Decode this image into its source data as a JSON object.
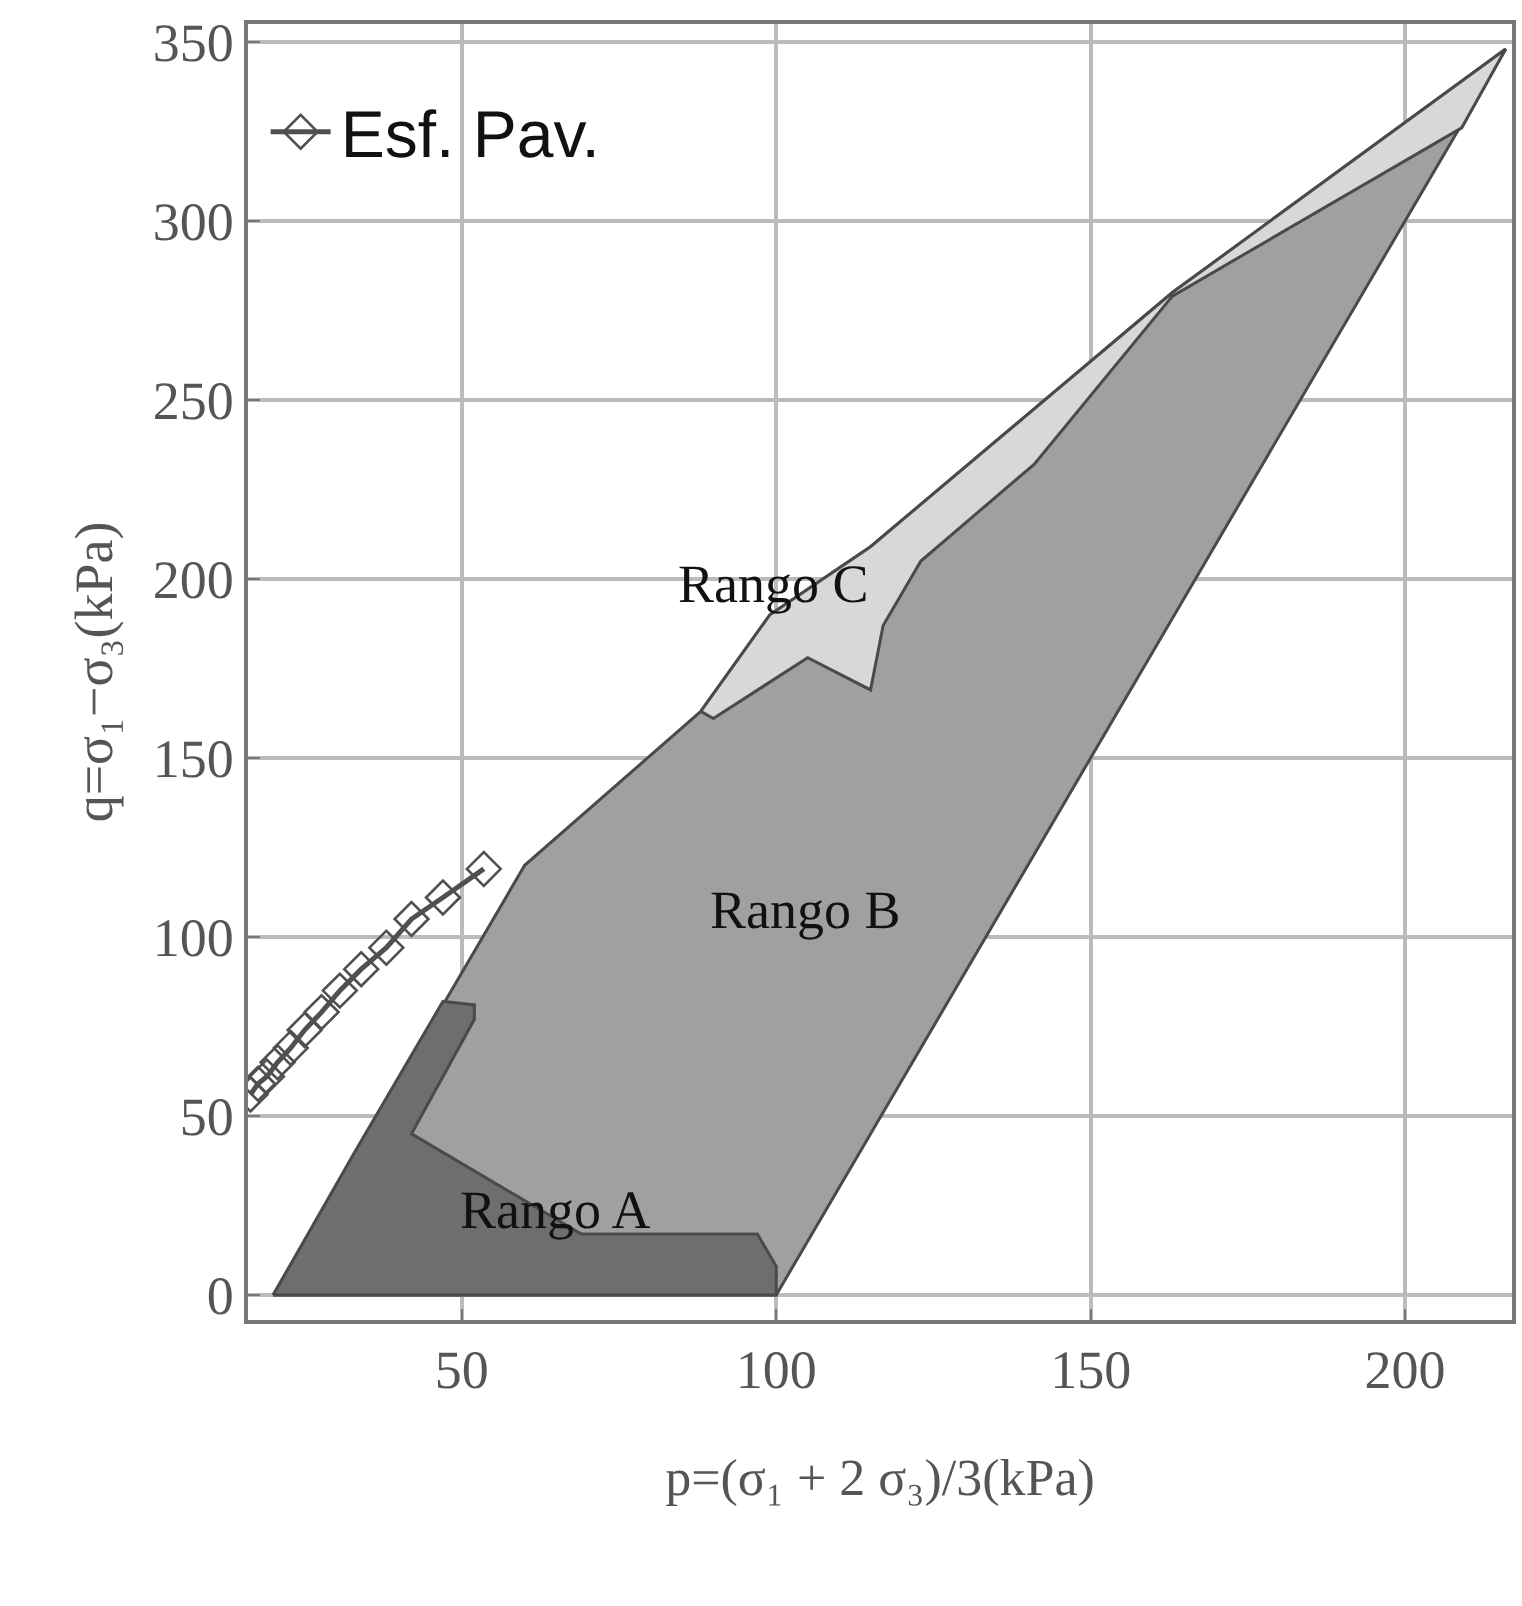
{
  "chart_data": {
    "type": "area",
    "xlabel": "p=(σ₁ + 2 σ₃)/3(kPa)",
    "ylabel": "q=σ₁−σ₃(kPa)",
    "xlim": [
      16,
      217
    ],
    "ylim": [
      -7,
      355
    ],
    "xticks": [
      50,
      100,
      150,
      200
    ],
    "yticks": [
      0,
      50,
      100,
      150,
      200,
      250,
      300,
      350
    ],
    "grid": true,
    "legend": "top left",
    "series": [
      {
        "color": "#a0a0a0",
        "x": [
          20,
          100,
          216,
          163,
          115,
          99,
          88,
          60,
          20
        ],
        "values": [
          0,
          0,
          348,
          280,
          209,
          190,
          163,
          120,
          0
        ]
      },
      {
        "color": "#6e6e6e",
        "x": [
          20,
          100,
          100,
          97,
          69,
          42,
          52,
          52,
          47,
          33,
          20
        ],
        "values": [
          0,
          0,
          8,
          17,
          17,
          45,
          77,
          81,
          82,
          40,
          0
        ]
      },
      {
        "color": "#d8d8d8",
        "x": [
          88,
          99,
          115,
          163,
          216,
          209,
          163,
          141,
          123,
          117,
          115,
          105,
          90,
          88
        ],
        "values": [
          163,
          190,
          209,
          280,
          348,
          326,
          279,
          232,
          205,
          187,
          169,
          178,
          161,
          163
        ]
      },
      {
        "type": "line",
        "name": "Esf. Pav.",
        "color": "#505050",
        "marker": "diamond",
        "x": [
          16.4,
          17.6,
          19,
          20.7,
          22.8,
          25,
          27.7,
          30.6,
          34,
          38,
          42,
          47,
          53.5
        ],
        "values": [
          56,
          59,
          61,
          65,
          69,
          74,
          79,
          85,
          91,
          97,
          105,
          111,
          119
        ]
      }
    ],
    "annotations": [
      "Rango A",
      "Rango B",
      "Rango C"
    ]
  }
}
